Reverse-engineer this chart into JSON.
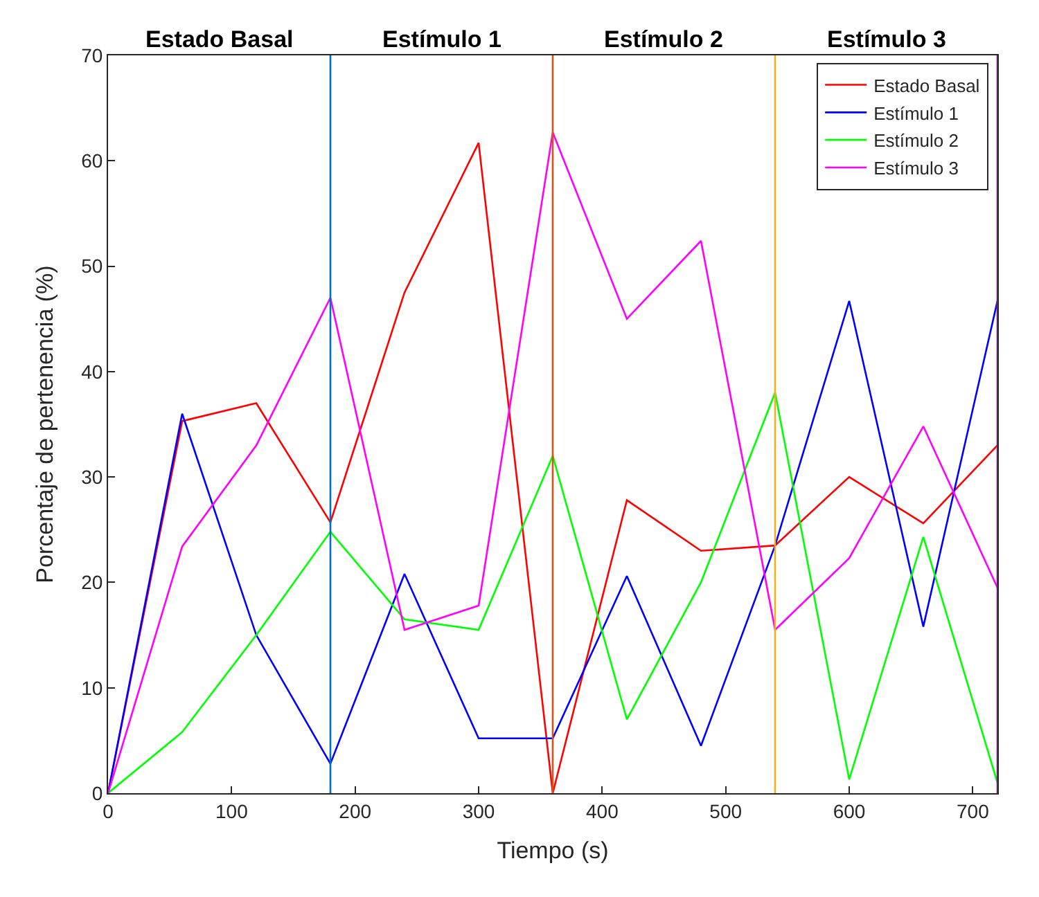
{
  "chart_data": {
    "type": "line",
    "xlabel": "Tiempo (s)",
    "ylabel": "Porcentaje de pertenencia (%)",
    "x": [
      0,
      60,
      120,
      180,
      240,
      300,
      360,
      420,
      480,
      540,
      600,
      660,
      720
    ],
    "series": [
      {
        "name": "Estado Basal",
        "color": "#ff0000",
        "values": [
          0,
          35.3,
          37,
          25.7,
          47.5,
          61.7,
          0,
          27.8,
          23,
          23.5,
          30,
          25.6,
          33
        ]
      },
      {
        "name": "Estímulo 1",
        "color": "#0000ff",
        "values": [
          0,
          36,
          15,
          2.8,
          20.8,
          5.2,
          5.2,
          20.6,
          4.5,
          23.5,
          46.7,
          15.8,
          46.7
        ]
      },
      {
        "name": "Estímulo 2",
        "color": "#00ff00",
        "values": [
          0,
          5.8,
          15,
          24.8,
          16.5,
          15.5,
          32,
          7,
          20,
          38,
          1.3,
          24.3,
          1
        ]
      },
      {
        "name": "Estímulo 3",
        "color": "#ff00ff",
        "values": [
          0,
          23.4,
          33,
          47,
          15.5,
          17.8,
          62.7,
          45,
          52.4,
          15.5,
          22.3,
          34.8,
          19.5
        ]
      }
    ],
    "xlim": [
      0,
      720
    ],
    "xticks": [
      0,
      100,
      200,
      300,
      400,
      500,
      600,
      700
    ],
    "ylim": [
      0,
      70
    ],
    "yticks": [
      0,
      10,
      20,
      30,
      40,
      50,
      60,
      70
    ],
    "ref_lines": [
      {
        "axis": "x",
        "value": 180,
        "color": "#0072bd"
      },
      {
        "axis": "x",
        "value": 360,
        "color": "#d95319"
      },
      {
        "axis": "x",
        "value": 540,
        "color": "#edb120"
      },
      {
        "axis": "x",
        "value": 720,
        "color": "#7e2f8e"
      }
    ],
    "annotations": [
      "Estado Basal",
      "Estímulo 1",
      "Estímulo 2",
      "Estímulo 3"
    ],
    "legend": "top right",
    "marker": "none",
    "line_style": "solid"
  }
}
